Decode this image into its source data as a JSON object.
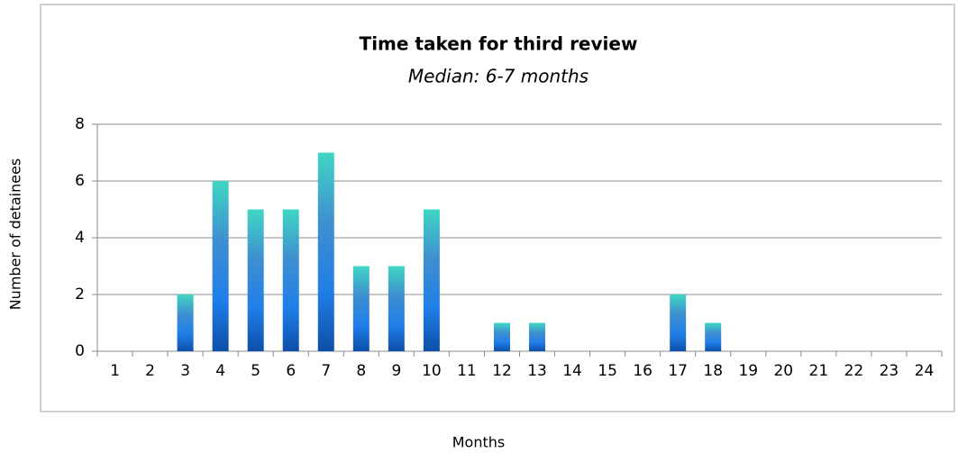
{
  "chart_data": {
    "type": "bar",
    "title": "Time taken for third review",
    "subtitle": "Median: 6-7 months",
    "x_label": "Months",
    "y_label": "Number of detainees",
    "categories": [
      "1",
      "2",
      "3",
      "4",
      "5",
      "6",
      "7",
      "8",
      "9",
      "10",
      "11",
      "12",
      "13",
      "14",
      "15",
      "16",
      "17",
      "18",
      "19",
      "20",
      "21",
      "22",
      "23",
      "24"
    ],
    "values": [
      0,
      0,
      2,
      6,
      5,
      5,
      7,
      3,
      3,
      5,
      0,
      1,
      1,
      0,
      0,
      0,
      2,
      1,
      0,
      0,
      0,
      0,
      0,
      0
    ],
    "ylim": [
      0,
      8
    ],
    "yticks": [
      0,
      2,
      4,
      6,
      8
    ],
    "grid": true
  }
}
